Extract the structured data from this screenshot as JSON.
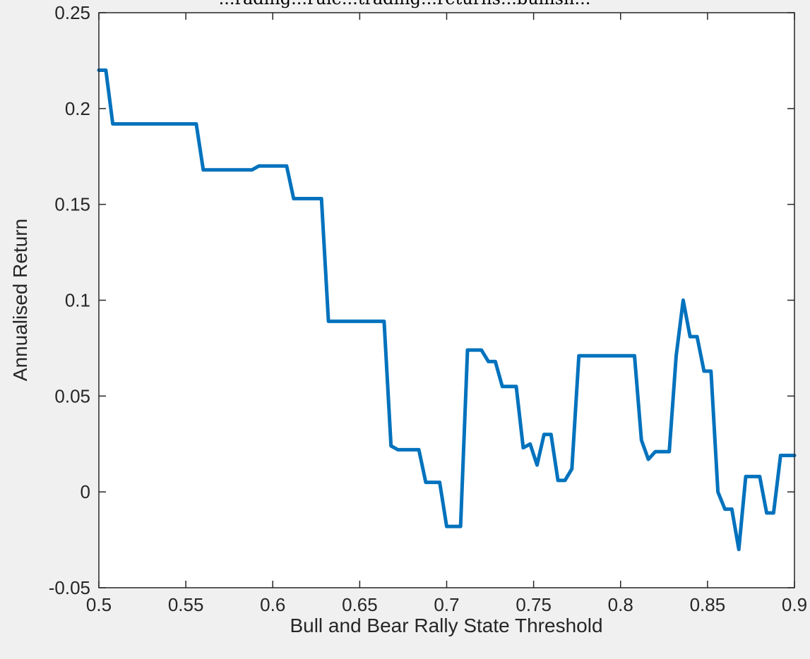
{
  "caption_fragment": "...rading...rule...trading...returns...bullish...",
  "chart_data": {
    "type": "line",
    "title": "",
    "xlabel": "Bull and Bear Rally State Threshold",
    "ylabel": "Annualised Return",
    "xlim": [
      0.5,
      0.9
    ],
    "ylim": [
      -0.05,
      0.25
    ],
    "xticks": [
      0.5,
      0.55,
      0.6,
      0.65,
      0.7,
      0.75,
      0.8,
      0.85,
      0.9
    ],
    "xtick_labels": [
      "0.5",
      "0.55",
      "0.6",
      "0.65",
      "0.7",
      "0.75",
      "0.8",
      "0.85",
      "0.9"
    ],
    "yticks": [
      -0.05,
      0,
      0.05,
      0.1,
      0.15,
      0.2,
      0.25
    ],
    "ytick_labels": [
      "-0.05",
      "0",
      "0.05",
      "0.1",
      "0.15",
      "0.2",
      "0.25"
    ],
    "grid": false,
    "series": [
      {
        "color": "#0072bd",
        "x": [
          0.5,
          0.504,
          0.508,
          0.512,
          0.516,
          0.52,
          0.524,
          0.528,
          0.532,
          0.536,
          0.54,
          0.544,
          0.548,
          0.552,
          0.556,
          0.56,
          0.564,
          0.568,
          0.572,
          0.576,
          0.58,
          0.584,
          0.588,
          0.592,
          0.596,
          0.6,
          0.604,
          0.608,
          0.612,
          0.616,
          0.62,
          0.624,
          0.628,
          0.632,
          0.636,
          0.64,
          0.644,
          0.648,
          0.652,
          0.656,
          0.66,
          0.664,
          0.668,
          0.672,
          0.676,
          0.68,
          0.684,
          0.688,
          0.692,
          0.696,
          0.7,
          0.704,
          0.708,
          0.712,
          0.716,
          0.72,
          0.724,
          0.728,
          0.732,
          0.736,
          0.74,
          0.744,
          0.748,
          0.752,
          0.756,
          0.76,
          0.764,
          0.768,
          0.772,
          0.776,
          0.78,
          0.784,
          0.788,
          0.792,
          0.796,
          0.8,
          0.804,
          0.808,
          0.812,
          0.816,
          0.82,
          0.824,
          0.828,
          0.832,
          0.836,
          0.84,
          0.844,
          0.848,
          0.852,
          0.856,
          0.86,
          0.864,
          0.868,
          0.872,
          0.876,
          0.88,
          0.884,
          0.888,
          0.892,
          0.896,
          0.9
        ],
        "y": [
          0.22,
          0.22,
          0.192,
          0.192,
          0.192,
          0.192,
          0.192,
          0.192,
          0.192,
          0.192,
          0.192,
          0.192,
          0.192,
          0.192,
          0.192,
          0.168,
          0.168,
          0.168,
          0.168,
          0.168,
          0.168,
          0.168,
          0.168,
          0.17,
          0.17,
          0.17,
          0.17,
          0.17,
          0.153,
          0.153,
          0.153,
          0.153,
          0.153,
          0.089,
          0.089,
          0.089,
          0.089,
          0.089,
          0.089,
          0.089,
          0.089,
          0.089,
          0.024,
          0.022,
          0.022,
          0.022,
          0.022,
          0.005,
          0.005,
          0.005,
          -0.018,
          -0.018,
          -0.018,
          0.074,
          0.074,
          0.074,
          0.068,
          0.068,
          0.055,
          0.055,
          0.055,
          0.023,
          0.025,
          0.014,
          0.03,
          0.03,
          0.006,
          0.006,
          0.012,
          0.071,
          0.071,
          0.071,
          0.071,
          0.071,
          0.071,
          0.071,
          0.071,
          0.071,
          0.027,
          0.017,
          0.021,
          0.021,
          0.021,
          0.071,
          0.1,
          0.081,
          0.081,
          0.063,
          0.063,
          0.0,
          -0.009,
          -0.009,
          -0.03,
          0.008,
          0.008,
          0.008,
          -0.011,
          -0.011,
          0.019,
          0.019,
          0.019
        ]
      }
    ]
  }
}
